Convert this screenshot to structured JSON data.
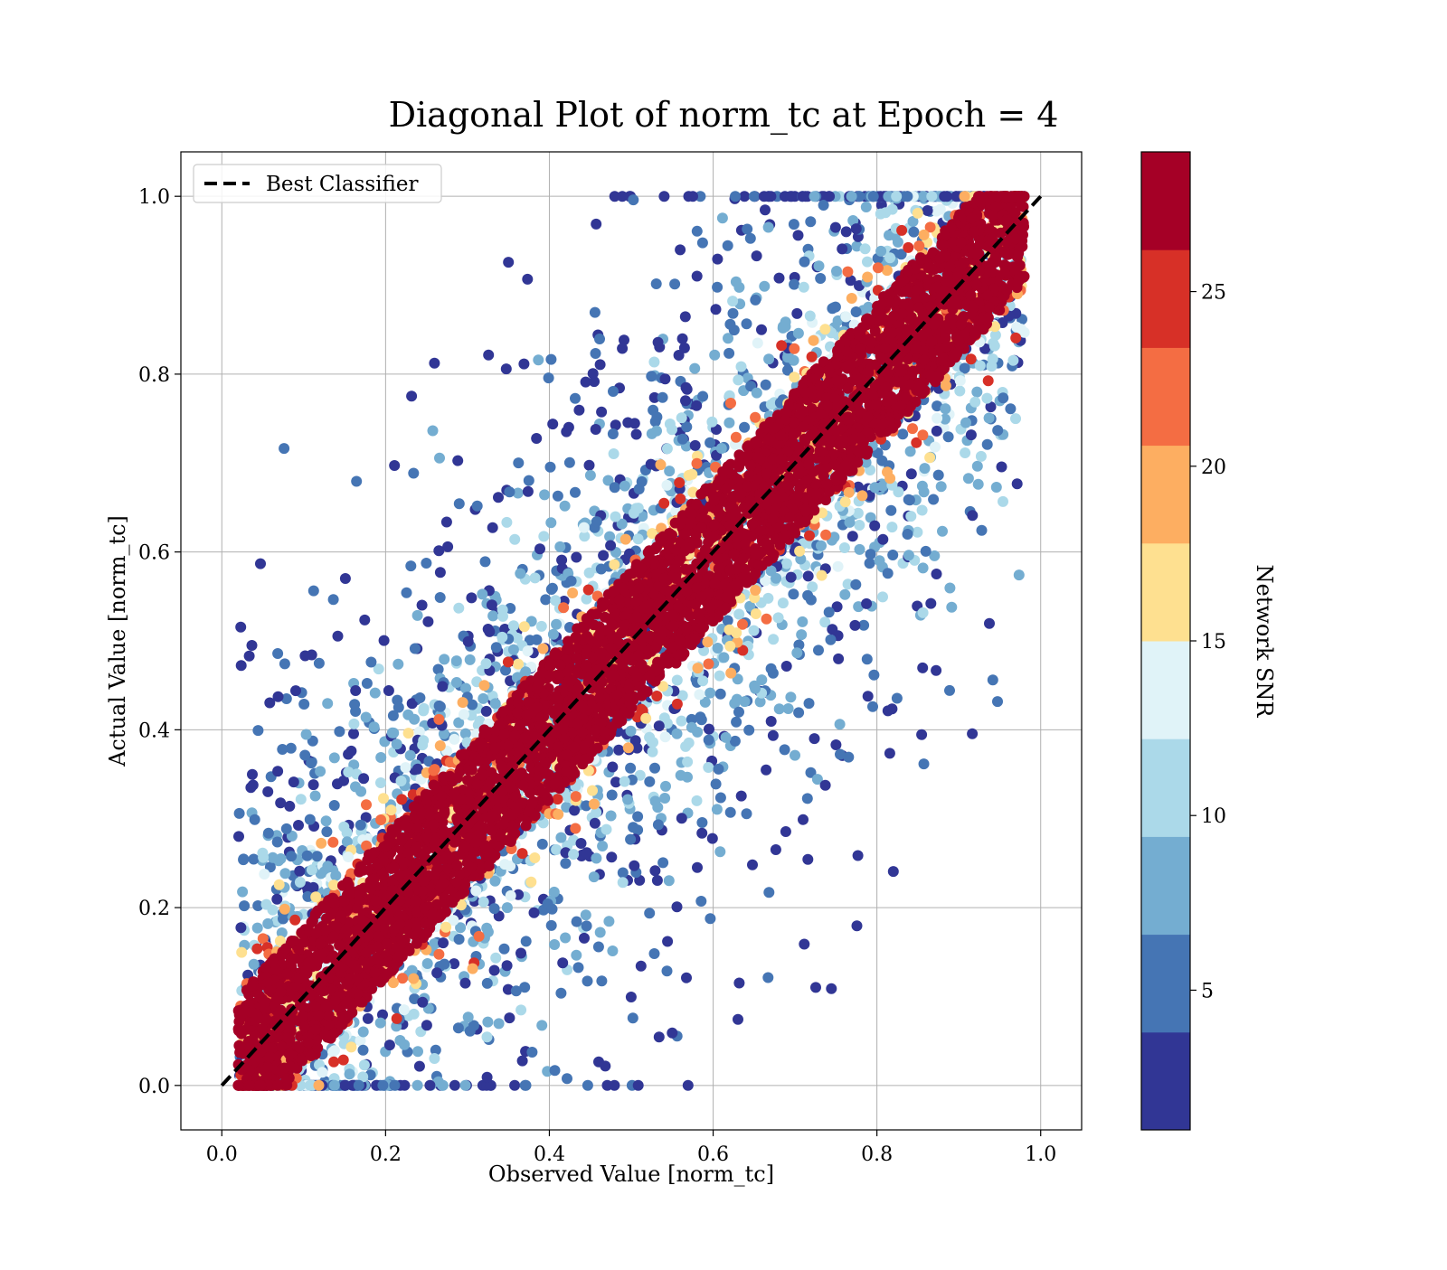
{
  "chart_data": {
    "type": "scatter",
    "title": "Diagonal Plot of norm_tc at Epoch = 4",
    "xlabel": "Observed Value [norm_tc]",
    "ylabel": "Actual Value [norm_tc]",
    "xlim": [
      -0.05,
      1.05
    ],
    "ylim": [
      -0.05,
      1.05
    ],
    "xticks": [
      "0.0",
      "0.2",
      "0.4",
      "0.6",
      "0.8",
      "1.0"
    ],
    "yticks": [
      "0.0",
      "0.2",
      "0.4",
      "0.6",
      "0.8",
      "1.0"
    ],
    "grid": true,
    "legend": {
      "placement": "top-left",
      "entries": [
        {
          "label": "Best Classifier",
          "style": "dashed",
          "color": "#000000"
        }
      ]
    },
    "reference_line": {
      "name": "Best Classifier",
      "x": [
        0,
        1
      ],
      "y": [
        0,
        1
      ]
    },
    "colorbar": {
      "label": "Network SNR",
      "range": [
        1,
        29
      ],
      "ticks": [
        "5",
        "10",
        "15",
        "20",
        "25"
      ],
      "colors": [
        "#313695",
        "#4575b4",
        "#74add1",
        "#abd9e9",
        "#e0f3f8",
        "#fee090",
        "#fdae61",
        "#f46d43",
        "#d73027",
        "#a50026"
      ]
    },
    "scatter_density": {
      "description_values": "points cluster tightly along y = x for high SNR (dark red, ~29); low-SNR points (blue) scatter widely above and below the diagonal",
      "band_halfwidth_high_snr": 0.08,
      "x_range": [
        0.02,
        0.98
      ],
      "y_range": [
        0.0,
        1.0
      ]
    }
  }
}
